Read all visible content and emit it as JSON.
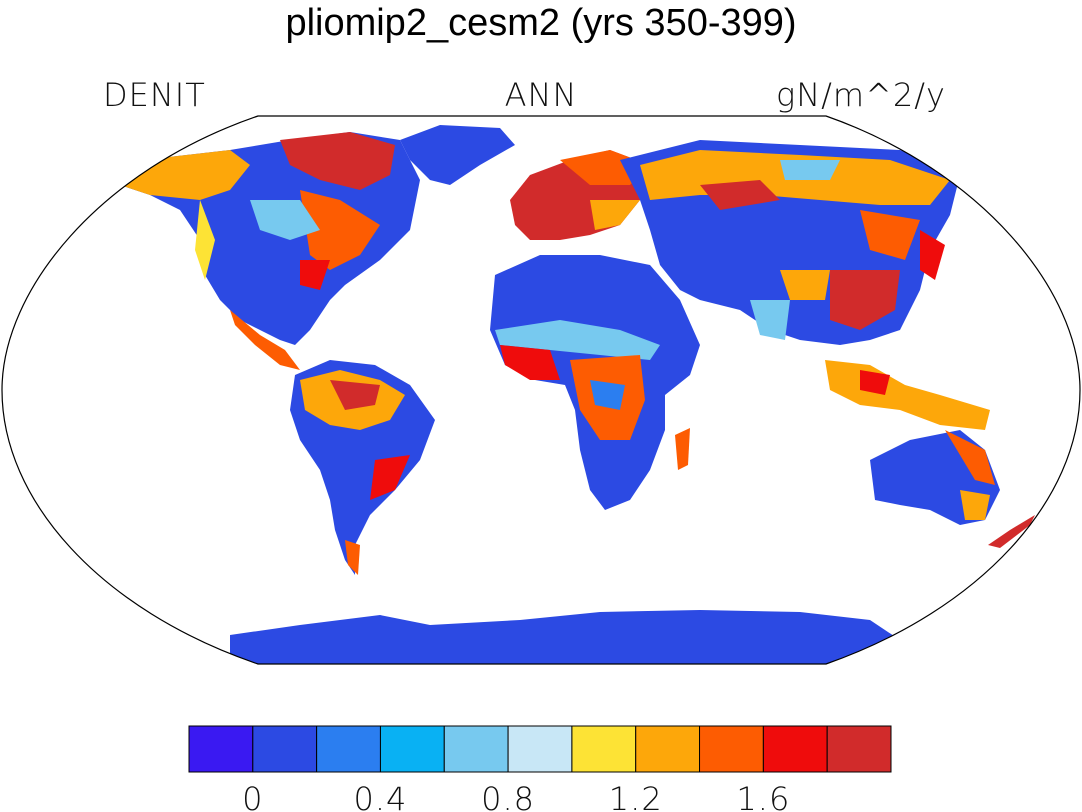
{
  "title": "pliomip2_cesm2 (yrs 350-399)",
  "left_label": "DENIT",
  "center_label": "ANN",
  "right_label": "gN/m^2/y",
  "colorbar": {
    "colors": [
      "#3a19f2",
      "#2c4ae3",
      "#2b7ef0",
      "#09b1f3",
      "#77c9ef",
      "#c8e7f6",
      "#fde335",
      "#fda70a",
      "#fd5c02",
      "#ef0c0c",
      "#d12b2b"
    ],
    "tick_labels": [
      "0",
      "0.4",
      "0.8",
      "1.2",
      "1.6"
    ],
    "tick_values": [
      0,
      0.4,
      0.8,
      1.2,
      1.6
    ],
    "levels": [
      0,
      0.2,
      0.4,
      0.6,
      0.8,
      1.0,
      1.2,
      1.4,
      1.6,
      1.8
    ]
  },
  "legend_colors": {
    "ocean": "#ffffff",
    "land_low": "#2c4ae3",
    "land_mid": "#fda70a",
    "land_high": "#d12b2b"
  }
}
